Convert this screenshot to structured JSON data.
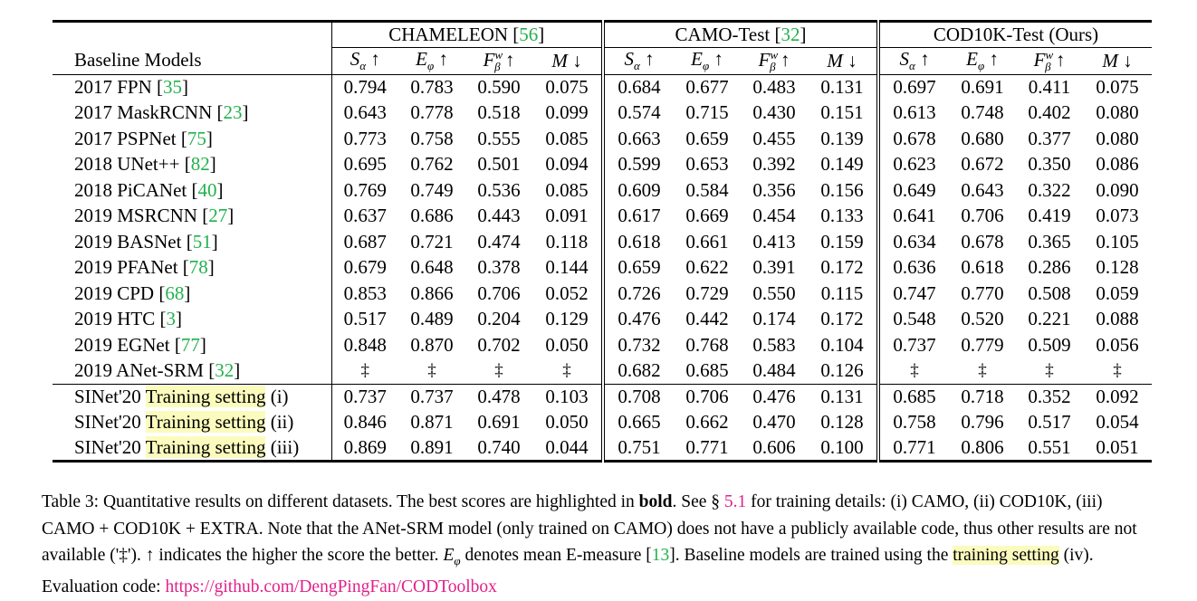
{
  "table": {
    "header_first_col": "Baseline Models",
    "datasets": [
      {
        "name": "CHAMELEON",
        "cite": "56"
      },
      {
        "name": "CAMO-Test",
        "cite": "32"
      },
      {
        "name": "COD10K-Test (Ours)",
        "cite": ""
      }
    ],
    "metrics": [
      "S_α ↑",
      "E_φ ↑",
      "F_β^w ↑",
      "M ↓"
    ],
    "rows": [
      {
        "model": "2017 FPN",
        "cite": "35",
        "values": [
          "0.794",
          "0.783",
          "0.590",
          "0.075",
          "0.684",
          "0.677",
          "0.483",
          "0.131",
          "0.697",
          "0.691",
          "0.411",
          "0.075"
        ]
      },
      {
        "model": "2017 MaskRCNN",
        "cite": "23",
        "values": [
          "0.643",
          "0.778",
          "0.518",
          "0.099",
          "0.574",
          "0.715",
          "0.430",
          "0.151",
          "0.613",
          "0.748",
          "0.402",
          "0.080"
        ]
      },
      {
        "model": "2017 PSPNet",
        "cite": "75",
        "values": [
          "0.773",
          "0.758",
          "0.555",
          "0.085",
          "0.663",
          "0.659",
          "0.455",
          "0.139",
          "0.678",
          "0.680",
          "0.377",
          "0.080"
        ]
      },
      {
        "model": "2018 UNet++",
        "cite": "82",
        "values": [
          "0.695",
          "0.762",
          "0.501",
          "0.094",
          "0.599",
          "0.653",
          "0.392",
          "0.149",
          "0.623",
          "0.672",
          "0.350",
          "0.086"
        ]
      },
      {
        "model": "2018 PiCANet",
        "cite": "40",
        "values": [
          "0.769",
          "0.749",
          "0.536",
          "0.085",
          "0.609",
          "0.584",
          "0.356",
          "0.156",
          "0.649",
          "0.643",
          "0.322",
          "0.090"
        ]
      },
      {
        "model": "2019 MSRCNN",
        "cite": "27",
        "values": [
          "0.637",
          "0.686",
          "0.443",
          "0.091",
          "0.617",
          "0.669",
          "0.454",
          "0.133",
          "0.641",
          "0.706",
          "0.419",
          "0.073"
        ]
      },
      {
        "model": "2019 BASNet",
        "cite": "51",
        "values": [
          "0.687",
          "0.721",
          "0.474",
          "0.118",
          "0.618",
          "0.661",
          "0.413",
          "0.159",
          "0.634",
          "0.678",
          "0.365",
          "0.105"
        ]
      },
      {
        "model": "2019 PFANet",
        "cite": "78",
        "values": [
          "0.679",
          "0.648",
          "0.378",
          "0.144",
          "0.659",
          "0.622",
          "0.391",
          "0.172",
          "0.636",
          "0.618",
          "0.286",
          "0.128"
        ]
      },
      {
        "model": "2019 CPD",
        "cite": "68",
        "values": [
          "0.853",
          "0.866",
          "0.706",
          "0.052",
          "0.726",
          "0.729",
          "0.550",
          "0.115",
          "0.747",
          "0.770",
          "0.508",
          "0.059"
        ]
      },
      {
        "model": "2019 HTC",
        "cite": "3",
        "values": [
          "0.517",
          "0.489",
          "0.204",
          "0.129",
          "0.476",
          "0.442",
          "0.174",
          "0.172",
          "0.548",
          "0.520",
          "0.221",
          "0.088"
        ]
      },
      {
        "model": "2019 EGNet",
        "cite": "77",
        "values": [
          "0.848",
          "0.870",
          "0.702",
          "0.050",
          "0.732",
          "0.768",
          "0.583",
          "0.104",
          "0.737",
          "0.779",
          "0.509",
          "0.056"
        ]
      },
      {
        "model": "2019 ANet-SRM",
        "cite": "32",
        "values": [
          "‡",
          "‡",
          "‡",
          "‡",
          "0.682",
          "0.685",
          "0.484",
          "0.126",
          "‡",
          "‡",
          "‡",
          "‡"
        ]
      }
    ],
    "sinet_rows": [
      {
        "prefix": "SINet'20",
        "highlight": "Training setting",
        "suffix": "(i)",
        "bold": false,
        "values": [
          "0.737",
          "0.737",
          "0.478",
          "0.103",
          "0.708",
          "0.706",
          "0.476",
          "0.131",
          "0.685",
          "0.718",
          "0.352",
          "0.092"
        ]
      },
      {
        "prefix": "SINet'20",
        "highlight": "Training setting",
        "suffix": "(ii)",
        "bold": false,
        "values": [
          "0.846",
          "0.871",
          "0.691",
          "0.050",
          "0.665",
          "0.662",
          "0.470",
          "0.128",
          "0.758",
          "0.796",
          "0.517",
          "0.054"
        ]
      },
      {
        "prefix": "SINet'20",
        "highlight": "Training setting",
        "suffix": "(iii)",
        "bold": true,
        "values": [
          "0.869",
          "0.891",
          "0.740",
          "0.044",
          "0.751",
          "0.771",
          "0.606",
          "0.100",
          "0.771",
          "0.806",
          "0.551",
          "0.051"
        ]
      }
    ]
  },
  "caption": {
    "label": "Table 3:",
    "t1": "Quantitative results on different datasets. The best scores are highlighted in",
    "bold_word": "bold",
    "t2": ". See §",
    "sec_ref": "5.1",
    "t3": "for training details: (i) CAMO, (ii) COD10K, (iii) CAMO + COD10K + EXTRA. Note that the ANet-SRM model (only trained on CAMO) does not have a publicly available code, thus other results are not available ('‡'). ↑ indicates the higher the score the better.",
    "t4": "denotes mean E-measure [",
    "cite13": "13",
    "t5": "]. Baseline models are trained using the",
    "hl_text": "training setting",
    "t6": "(iv). Evaluation code:",
    "url": "https://github.com/DengPingFan/CODToolbox"
  },
  "colors": {
    "cite": "#22b14c",
    "link": "#e0218a",
    "highlight": "#fbfbbe"
  }
}
